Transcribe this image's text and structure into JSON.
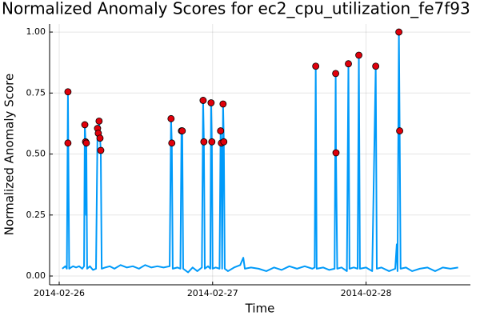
{
  "chart_data": {
    "type": "line",
    "title": "Normalized Anomaly Scores for ec2_cpu_utilization_fe7f93",
    "x_label": "Time",
    "y_label": "Normalized Anomaly Score",
    "xlim": [
      -0.0625,
      2.68
    ],
    "ylim": [
      -0.036,
      1.033
    ],
    "grid": true,
    "xticks": [
      {
        "value": 0,
        "label": "2014-02-26"
      },
      {
        "value": 1,
        "label": "2014-02-27"
      },
      {
        "value": 2,
        "label": "2014-02-28"
      }
    ],
    "yticks": [
      {
        "value": 0,
        "label": "0.00"
      },
      {
        "value": 0.25,
        "label": "0.25"
      },
      {
        "value": 0.5,
        "label": "0.50"
      },
      {
        "value": 0.75,
        "label": "0.75"
      },
      {
        "value": 1,
        "label": "1.00"
      }
    ],
    "series": [
      {
        "color": "#009af9",
        "style": "line",
        "x": [
          0.02,
          0.04,
          0.05,
          0.057,
          0.065,
          0.09,
          0.11,
          0.13,
          0.15,
          0.162,
          0.167,
          0.172,
          0.175,
          0.177,
          0.182,
          0.2,
          0.22,
          0.24,
          0.25,
          0.255,
          0.26,
          0.266,
          0.271,
          0.277,
          0.3,
          0.33,
          0.36,
          0.4,
          0.44,
          0.48,
          0.52,
          0.56,
          0.6,
          0.64,
          0.68,
          0.72,
          0.729,
          0.734,
          0.74,
          0.77,
          0.79,
          0.797,
          0.802,
          0.808,
          0.84,
          0.87,
          0.9,
          0.93,
          0.938,
          0.943,
          0.949,
          0.97,
          0.985,
          0.99,
          0.995,
          1.0,
          1.02,
          1.045,
          1.052,
          1.057,
          1.062,
          1.068,
          1.073,
          1.079,
          1.1,
          1.14,
          1.18,
          1.2,
          1.21,
          1.25,
          1.3,
          1.35,
          1.4,
          1.45,
          1.5,
          1.55,
          1.6,
          1.65,
          1.665,
          1.672,
          1.678,
          1.72,
          1.76,
          1.795,
          1.802,
          1.804,
          1.812,
          1.84,
          1.875,
          1.885,
          1.892,
          1.92,
          1.945,
          1.953,
          1.96,
          2.0,
          2.04,
          2.063,
          2.07,
          2.1,
          2.15,
          2.19,
          2.2,
          2.205,
          2.214,
          2.219,
          2.225,
          2.26,
          2.3,
          2.35,
          2.4,
          2.45,
          2.5,
          2.55,
          2.6
        ],
        "values": [
          0.03,
          0.04,
          0.03,
          0.755,
          0.03,
          0.04,
          0.035,
          0.04,
          0.03,
          0.04,
          0.62,
          0.55,
          0.25,
          0.545,
          0.03,
          0.04,
          0.025,
          0.03,
          0.605,
          0.585,
          0.635,
          0.565,
          0.515,
          0.03,
          0.035,
          0.04,
          0.03,
          0.045,
          0.035,
          0.04,
          0.03,
          0.045,
          0.035,
          0.04,
          0.035,
          0.04,
          0.645,
          0.545,
          0.03,
          0.035,
          0.03,
          0.595,
          0.595,
          0.03,
          0.015,
          0.035,
          0.02,
          0.035,
          0.72,
          0.55,
          0.03,
          0.04,
          0.03,
          0.71,
          0.55,
          0.03,
          0.035,
          0.03,
          0.595,
          0.545,
          0.03,
          0.705,
          0.55,
          0.03,
          0.02,
          0.035,
          0.045,
          0.075,
          0.03,
          0.035,
          0.03,
          0.02,
          0.035,
          0.025,
          0.04,
          0.03,
          0.04,
          0.03,
          0.035,
          0.86,
          0.03,
          0.035,
          0.025,
          0.03,
          0.83,
          0.505,
          0.03,
          0.035,
          0.02,
          0.87,
          0.03,
          0.035,
          0.03,
          0.905,
          0.03,
          0.035,
          0.02,
          0.86,
          0.03,
          0.035,
          0.02,
          0.03,
          0.13,
          0.02,
          1.0,
          0.595,
          0.03,
          0.035,
          0.02,
          0.03,
          0.035,
          0.02,
          0.035,
          0.03,
          0.035
        ]
      },
      {
        "color": "#e0000b",
        "style": "scatter",
        "x": [
          0.057,
          0.057,
          0.167,
          0.172,
          0.177,
          0.25,
          0.255,
          0.26,
          0.266,
          0.271,
          0.729,
          0.734,
          0.797,
          0.802,
          0.938,
          0.943,
          0.99,
          0.995,
          1.052,
          1.057,
          1.068,
          1.073,
          1.672,
          1.802,
          1.804,
          1.885,
          1.953,
          2.063,
          2.214,
          2.219
        ],
        "values": [
          0.755,
          0.545,
          0.62,
          0.55,
          0.545,
          0.605,
          0.585,
          0.635,
          0.565,
          0.515,
          0.645,
          0.545,
          0.595,
          0.595,
          0.72,
          0.55,
          0.71,
          0.55,
          0.595,
          0.545,
          0.705,
          0.55,
          0.86,
          0.83,
          0.505,
          0.87,
          0.905,
          0.86,
          1.0,
          0.595
        ]
      }
    ]
  }
}
